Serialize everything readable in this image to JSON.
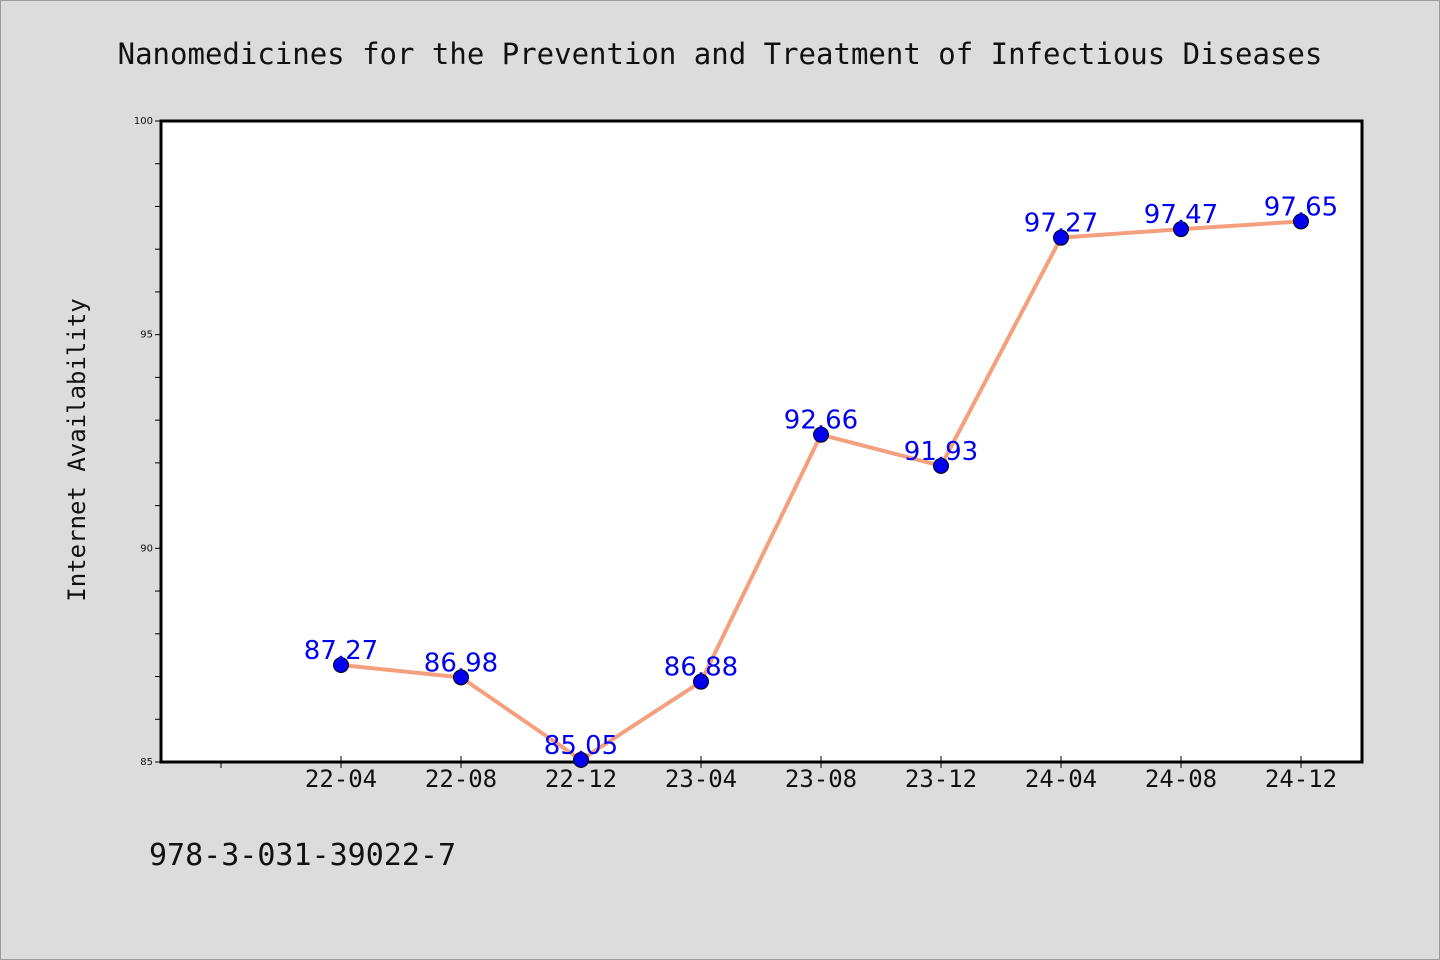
{
  "chart_data": {
    "type": "line",
    "title": "Nanomedicines for the Prevention and Treatment of Infectious Diseases",
    "xlabel": "",
    "ylabel": "Internet Availability",
    "categories": [
      "22-04",
      "22-08",
      "22-12",
      "23-04",
      "23-08",
      "23-12",
      "24-04",
      "24-08",
      "24-12"
    ],
    "series": [
      {
        "values": [
          87.27,
          86.98,
          85.05,
          86.88,
          92.66,
          91.93,
          97.27,
          97.47,
          97.65
        ]
      }
    ],
    "data_labels": [
      "87.27",
      "86.98",
      "85.05",
      "86.88",
      "92.66",
      "91.93",
      "97.27",
      "97.47",
      "97.65"
    ],
    "ylim": [
      85,
      100
    ],
    "yticks": [
      85,
      90,
      95,
      100
    ],
    "grid": false,
    "legend": "none"
  },
  "footer": {
    "text": "978-3-031-39022-7"
  },
  "colors": {
    "background": "#dcdcdc",
    "plot_area": "#ffffff",
    "line": "#f4a07e",
    "marker": "#0000ee",
    "data_label": "#0000ee"
  }
}
